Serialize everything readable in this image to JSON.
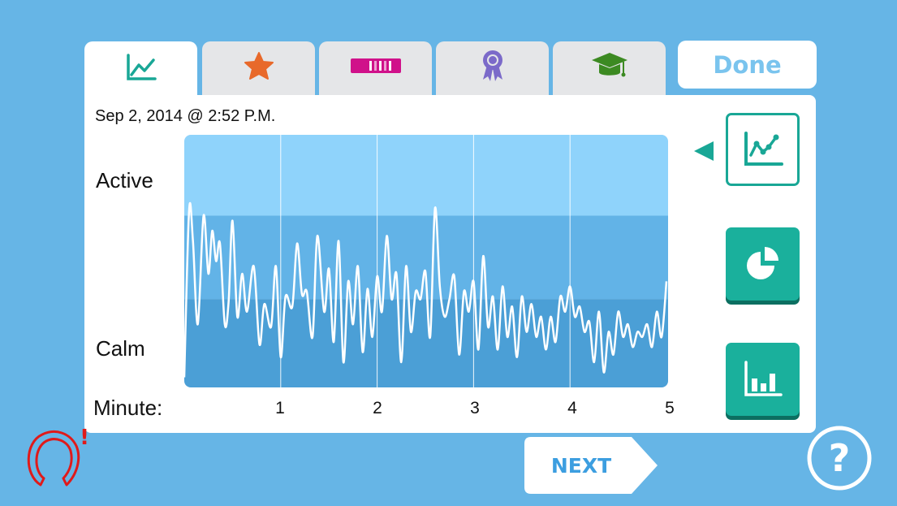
{
  "tabs": [
    {
      "icon": "line-chart-icon",
      "active": true
    },
    {
      "icon": "star-icon",
      "active": false
    },
    {
      "icon": "progress-bar-icon",
      "active": false
    },
    {
      "icon": "award-ribbon-icon",
      "active": false
    },
    {
      "icon": "graduation-cap-icon",
      "active": false
    }
  ],
  "done_label": "Done",
  "timestamp": "Sep 2, 2014 @ 2:52 P.M.",
  "chart_labels": {
    "active": "Active",
    "calm": "Calm",
    "x_prefix": "Minute:"
  },
  "chart_data": {
    "type": "line",
    "x_ticks": [
      "1",
      "2",
      "3",
      "4",
      "5"
    ],
    "xlim": [
      0,
      5
    ],
    "ylim": [
      0,
      1
    ],
    "bands": [
      {
        "from": 0.68,
        "to": 1.0,
        "color": "#8fd3fb"
      },
      {
        "from": 0.35,
        "to": 0.68,
        "color": "#62b3e7"
      },
      {
        "from": 0.0,
        "to": 0.35,
        "color": "#4b9fd6"
      }
    ],
    "series": [
      {
        "color": "#ffffff",
        "x": [
          0.0,
          0.05,
          0.09,
          0.14,
          0.2,
          0.25,
          0.29,
          0.33,
          0.37,
          0.42,
          0.46,
          0.5,
          0.55,
          0.6,
          0.65,
          0.72,
          0.78,
          0.83,
          0.9,
          0.95,
          1.0,
          1.05,
          1.12,
          1.17,
          1.22,
          1.27,
          1.33,
          1.38,
          1.45,
          1.5,
          1.55,
          1.6,
          1.65,
          1.7,
          1.75,
          1.8,
          1.85,
          1.9,
          1.95,
          2.0,
          2.05,
          2.1,
          2.15,
          2.2,
          2.25,
          2.3,
          2.35,
          2.4,
          2.45,
          2.5,
          2.55,
          2.6,
          2.65,
          2.7,
          2.75,
          2.8,
          2.85,
          2.9,
          2.95,
          3.0,
          3.05,
          3.1,
          3.15,
          3.2,
          3.25,
          3.3,
          3.35,
          3.4,
          3.45,
          3.5,
          3.55,
          3.6,
          3.65,
          3.7,
          3.75,
          3.8,
          3.85,
          3.9,
          3.95,
          4.0,
          4.05,
          4.1,
          4.15,
          4.2,
          4.25,
          4.3,
          4.35,
          4.4,
          4.45,
          4.5,
          4.55,
          4.6,
          4.65,
          4.7,
          4.75,
          4.8,
          4.85,
          4.9,
          4.95,
          5.0
        ],
        "y": [
          0.04,
          0.7,
          0.58,
          0.25,
          0.68,
          0.45,
          0.62,
          0.5,
          0.57,
          0.25,
          0.34,
          0.66,
          0.28,
          0.45,
          0.3,
          0.48,
          0.17,
          0.33,
          0.24,
          0.48,
          0.12,
          0.36,
          0.32,
          0.57,
          0.37,
          0.38,
          0.2,
          0.6,
          0.3,
          0.47,
          0.18,
          0.58,
          0.1,
          0.42,
          0.25,
          0.48,
          0.14,
          0.39,
          0.2,
          0.44,
          0.3,
          0.6,
          0.35,
          0.45,
          0.1,
          0.48,
          0.22,
          0.38,
          0.35,
          0.46,
          0.2,
          0.71,
          0.4,
          0.28,
          0.35,
          0.44,
          0.13,
          0.38,
          0.3,
          0.42,
          0.15,
          0.52,
          0.24,
          0.36,
          0.15,
          0.4,
          0.2,
          0.32,
          0.12,
          0.36,
          0.22,
          0.33,
          0.2,
          0.28,
          0.15,
          0.28,
          0.18,
          0.36,
          0.3,
          0.4,
          0.28,
          0.32,
          0.22,
          0.26,
          0.1,
          0.3,
          0.06,
          0.22,
          0.13,
          0.3,
          0.2,
          0.25,
          0.16,
          0.22,
          0.2,
          0.25,
          0.16,
          0.3,
          0.2,
          0.42
        ]
      }
    ]
  },
  "view_buttons": [
    {
      "icon": "line-graph-icon",
      "selected": true
    },
    {
      "icon": "pie-chart-icon",
      "selected": false
    },
    {
      "icon": "bar-chart-icon",
      "selected": false
    }
  ],
  "next_label": "NEXT",
  "help_label": "?",
  "alert_mark": "!",
  "colors": {
    "background": "#66b5e6",
    "accent": "#1ab09c",
    "done_text": "#7ac4ee",
    "alert": "#e01a1a"
  }
}
